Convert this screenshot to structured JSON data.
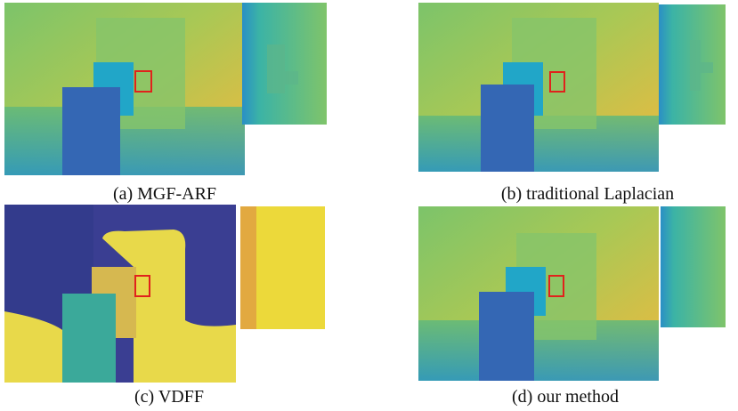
{
  "panels": [
    {
      "caption": "(a) MGF-ARF"
    },
    {
      "caption": "(b) traditional Laplacian"
    },
    {
      "caption": "(c) VDFF"
    },
    {
      "caption": "(d) our method"
    }
  ]
}
